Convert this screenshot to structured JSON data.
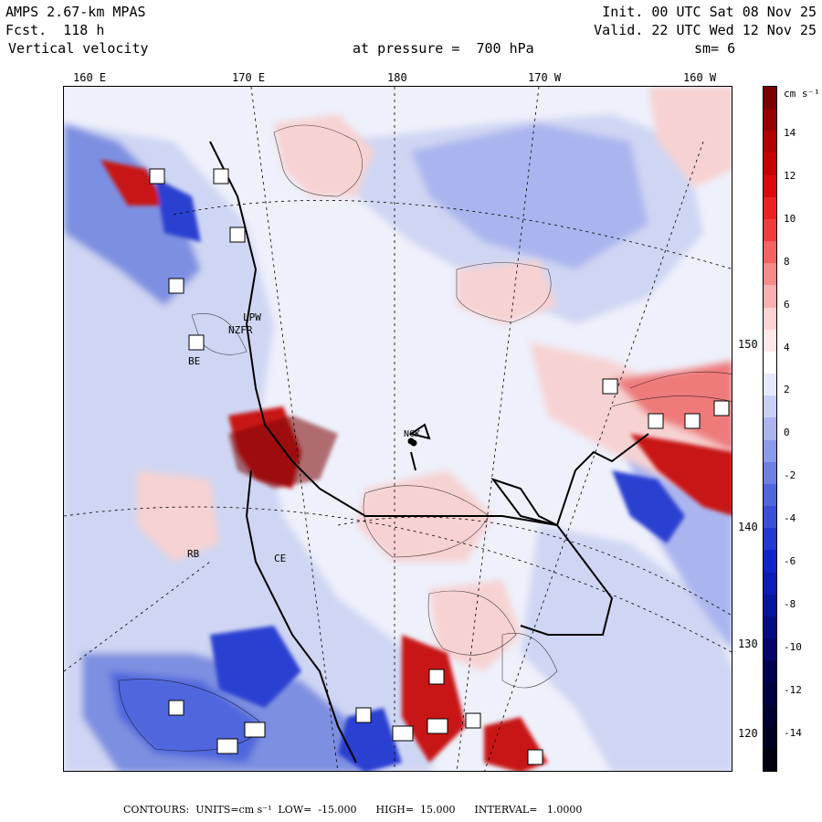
{
  "header": {
    "model": "AMPS 2.67-km MPAS",
    "forecast": "Fcst.  118 h",
    "field": "Vertical velocity",
    "init": "Init. 00 UTC Sat 08 Nov 25",
    "valid": "Valid. 22 UTC Wed 12 Nov 25",
    "level": "at pressure =  700 hPa",
    "smoothing": "sm= 6"
  },
  "map": {
    "top_longitudes": [
      "160 E",
      "170 E",
      "180",
      "170 W",
      "160 W"
    ],
    "right_longitudes": [
      "150 W",
      "140 W",
      "130 W",
      "120 W"
    ],
    "place_labels": [
      "LPW",
      "NZFR",
      "BE",
      "RB",
      "CE",
      "NCK"
    ],
    "colors": {
      "background_light": "#eef0fb",
      "positive_light": "#f7d2d2",
      "positive_mid": "#ee7a7a",
      "positive_strong": "#c81515",
      "negative_light": "#cfd6f3",
      "negative_mid": "#7d8fe0",
      "negative_strong": "#2a3fd0",
      "coast": "#000000"
    }
  },
  "colorbar": {
    "units": "cm s⁻¹",
    "tick_labels": [
      "14",
      "12",
      "10",
      "8",
      "6",
      "4",
      "2",
      "0",
      "-2",
      "-4",
      "-6",
      "-8",
      "-10",
      "-12",
      "-14"
    ],
    "colors_top_to_bottom": [
      "#7a0000",
      "#960000",
      "#b00000",
      "#c80000",
      "#dc0a0a",
      "#ec2222",
      "#f23c3c",
      "#f56262",
      "#f78a8a",
      "#f9b0b0",
      "#fbd3d3",
      "#fde9e9",
      "#ffffff",
      "#e6e9fb",
      "#c9d0f5",
      "#aab5ef",
      "#8c9be9",
      "#6e80e3",
      "#5066dd",
      "#3a50d8",
      "#2438d2",
      "#1024cc",
      "#0c1cb4",
      "#08149c",
      "#040c84",
      "#02066c",
      "#000050",
      "#000040",
      "#000030",
      "#000020",
      "#000010"
    ]
  },
  "footer": {
    "contours": "CONTOURS:",
    "units": "UNITS=cm s⁻¹",
    "low": "LOW=  -15.000",
    "high": "HIGH=  15.000",
    "interval": "INTERVAL=   1.0000"
  }
}
